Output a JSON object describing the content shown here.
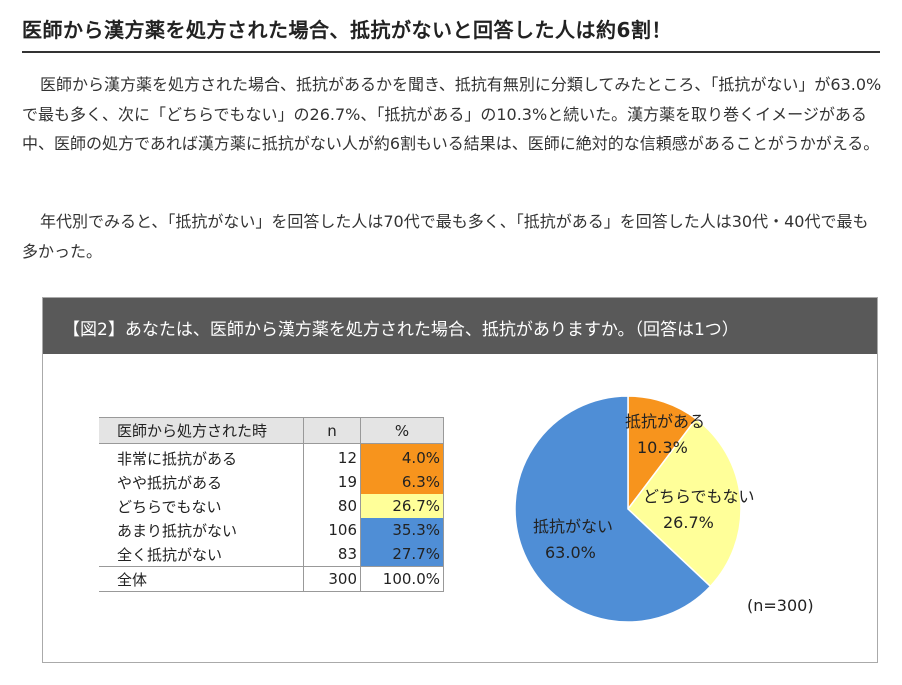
{
  "headline": "医師から漢方薬を処方された場合、抵抗がないと回答した人は約6割！",
  "paragraph1": "医師から漢方薬を処方された場合、抵抗があるかを聞き、抵抗有無別に分類してみたところ、「抵抗がない」が63.0%で最も多く、次に「どちらでもない」の26.7%、「抵抗がある」の10.3%と続いた。漢方薬を取り巻くイメージがある中、医師の処方であれば漢方薬に抵抗がない人が約6割もいる結果は、医師に絶対的な信頼感があることがうかがえる。",
  "paragraph2": "年代別でみると、「抵抗がない」を回答した人は70代で最も多く、「抵抗がある」を回答した人は30代・40代で最も多かった。",
  "figure": {
    "title": "【図2】あなたは、医師から漢方薬を処方された場合、抵抗がありますか。（回答は1つ）",
    "table": {
      "headers": [
        "医師から処方された時",
        "n",
        "%"
      ],
      "rows": [
        {
          "label": "非常に抵抗がある",
          "n": "12",
          "pct": "4.0%",
          "color": "#f7941d"
        },
        {
          "label": "やや抵抗がある",
          "n": "19",
          "pct": "6.3%",
          "color": "#f7941d"
        },
        {
          "label": "どちらでもない",
          "n": "80",
          "pct": "26.7%",
          "color": "#ffff99"
        },
        {
          "label": "あまり抵抗がない",
          "n": "106",
          "pct": "35.3%",
          "color": "#4f8ed6"
        },
        {
          "label": "全く抵抗がない",
          "n": "83",
          "pct": "27.7%",
          "color": "#4f8ed6"
        }
      ],
      "total": {
        "label": "全体",
        "n": "300",
        "pct": "100.0%"
      }
    },
    "sample_note": "(n=300)"
  },
  "chart_data": {
    "type": "pie",
    "start": "12 o'clock, clockwise",
    "slices": [
      {
        "label": "抵抗がある",
        "value": 10.3,
        "value_label": "10.3%",
        "color": "#f7941d"
      },
      {
        "label": "どちらでもない",
        "value": 26.7,
        "value_label": "26.7%",
        "color": "#ffff99"
      },
      {
        "label": "抵抗がない",
        "value": 63.0,
        "value_label": "63.0%",
        "color": "#4f8ed6"
      }
    ]
  }
}
